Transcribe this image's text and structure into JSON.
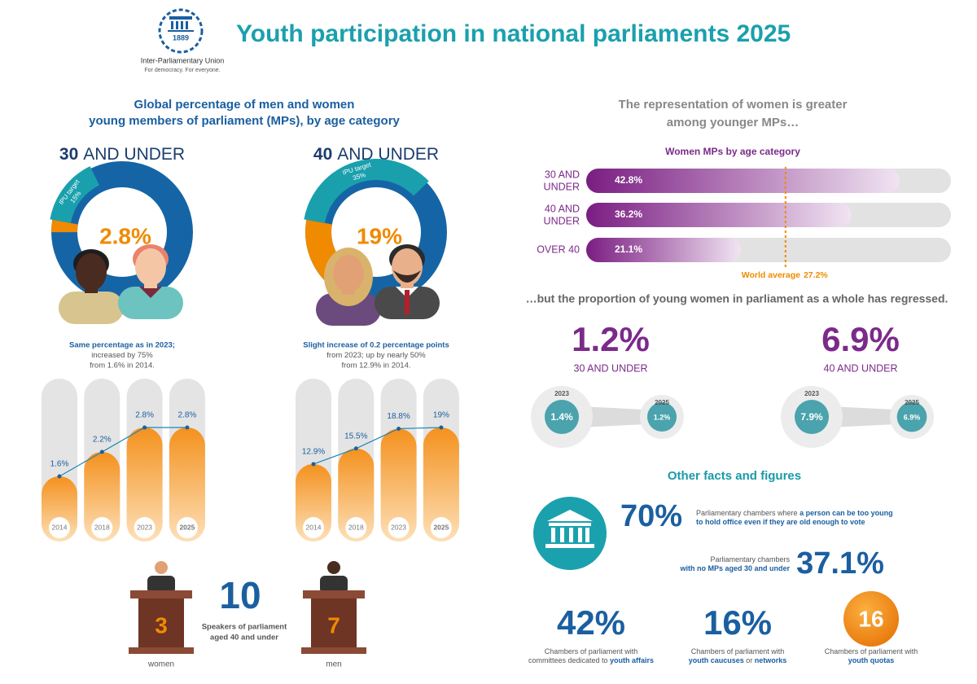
{
  "header": {
    "title": "Youth participation in national parliaments 2025",
    "logo_year": "1889",
    "organization": "Inter-Parliamentary Union",
    "tagline": "For democracy. For everyone."
  },
  "young_mps": {
    "title_lines": [
      "Global percentage of men and women",
      "young members of parliament (MPs), by age category"
    ],
    "groups": [
      {
        "age": "30",
        "age_suffix": "AND UNDER",
        "share": 2.8,
        "share_label": "2.8%",
        "target_text": "IPU target",
        "target": 15,
        "target_label": "15%",
        "note_lines": [
          "Same percentage as in 2023;",
          "increased by 75%",
          "from 1.6% in 2014."
        ],
        "years": [
          "2014",
          "2018",
          "2023",
          "2025"
        ],
        "values": [
          1.6,
          2.2,
          2.8,
          2.8
        ],
        "value_labels": [
          "1.6%",
          "2.2%",
          "2.8%",
          "2.8%"
        ]
      },
      {
        "age": "40",
        "age_suffix": "AND UNDER",
        "share": 19,
        "share_label": "19%",
        "target_text": "IPU target",
        "target": 35,
        "target_label": "35%",
        "note_lines": [
          "Slight increase of 0.2 percentage points",
          "from 2023; up by nearly 50%",
          "from 12.9% in 2014."
        ],
        "years": [
          "2014",
          "2018",
          "2023",
          "2025"
        ],
        "values": [
          12.9,
          15.5,
          18.8,
          19
        ],
        "value_labels": [
          "12.9%",
          "15.5%",
          "18.8%",
          "19%"
        ]
      }
    ]
  },
  "speakers": {
    "total": "10",
    "text_lines": [
      "Speakers of parliament",
      "aged 40 and under"
    ],
    "women": "3",
    "women_label": "women",
    "men": "7",
    "men_label": "men"
  },
  "women_mps": {
    "title_lines": [
      "The representation of women is greater",
      "among younger MPs…"
    ],
    "subtitle": "Women MPs by age category",
    "categories": [
      [
        "30 AND",
        "UNDER"
      ],
      [
        "40 AND",
        "UNDER"
      ],
      [
        "OVER 40"
      ]
    ],
    "values": [
      42.8,
      36.2,
      21.1
    ],
    "value_labels": [
      "42.8%",
      "36.2%",
      "21.1%"
    ],
    "average_text": "World average",
    "average": 27.2,
    "average_label": "27.2%"
  },
  "regression": {
    "title": "…but the proportion of young women in parliament as a whole has regressed.",
    "groups": [
      {
        "current_label": "1.2%",
        "category": "30 AND UNDER",
        "years": [
          "2023",
          "2025"
        ],
        "values": [
          1.4,
          1.2
        ],
        "value_labels": [
          "1.4%",
          "1.2%"
        ]
      },
      {
        "current_label": "6.9%",
        "category": "40 AND UNDER",
        "years": [
          "2023",
          "2025"
        ],
        "values": [
          7.9,
          6.9
        ],
        "value_labels": [
          "7.9%",
          "6.9%"
        ]
      }
    ]
  },
  "facts": {
    "title": "Other facts and figures",
    "items": [
      {
        "figure": "70%",
        "segments": [
          {
            "text": "Parliamentary chambers where ",
            "bold": false
          },
          {
            "text": "a person can be too young\nto hold office even if they are old enough to vote",
            "bold": true
          }
        ]
      },
      {
        "figure": "37.1%",
        "segments": [
          {
            "text": "Parliamentary chambers\n",
            "bold": false
          },
          {
            "text": "with no MPs aged 30 and under",
            "bold": true
          }
        ]
      },
      {
        "figure": "42%",
        "segments": [
          {
            "text": "Chambers of parliament with\ncommittees dedicated to ",
            "bold": false
          },
          {
            "text": "youth affairs",
            "bold": true
          }
        ]
      },
      {
        "figure": "16%",
        "segments": [
          {
            "text": "Chambers of parliament with\n",
            "bold": false
          },
          {
            "text": "youth caucuses",
            "bold": true
          },
          {
            "text": " or ",
            "bold": false
          },
          {
            "text": "networks",
            "bold": true
          }
        ]
      },
      {
        "figure": "16",
        "segments": [
          {
            "text": "Chambers of parliament with\n",
            "bold": false
          },
          {
            "text": "youth quotas",
            "bold": true
          }
        ]
      }
    ]
  }
}
